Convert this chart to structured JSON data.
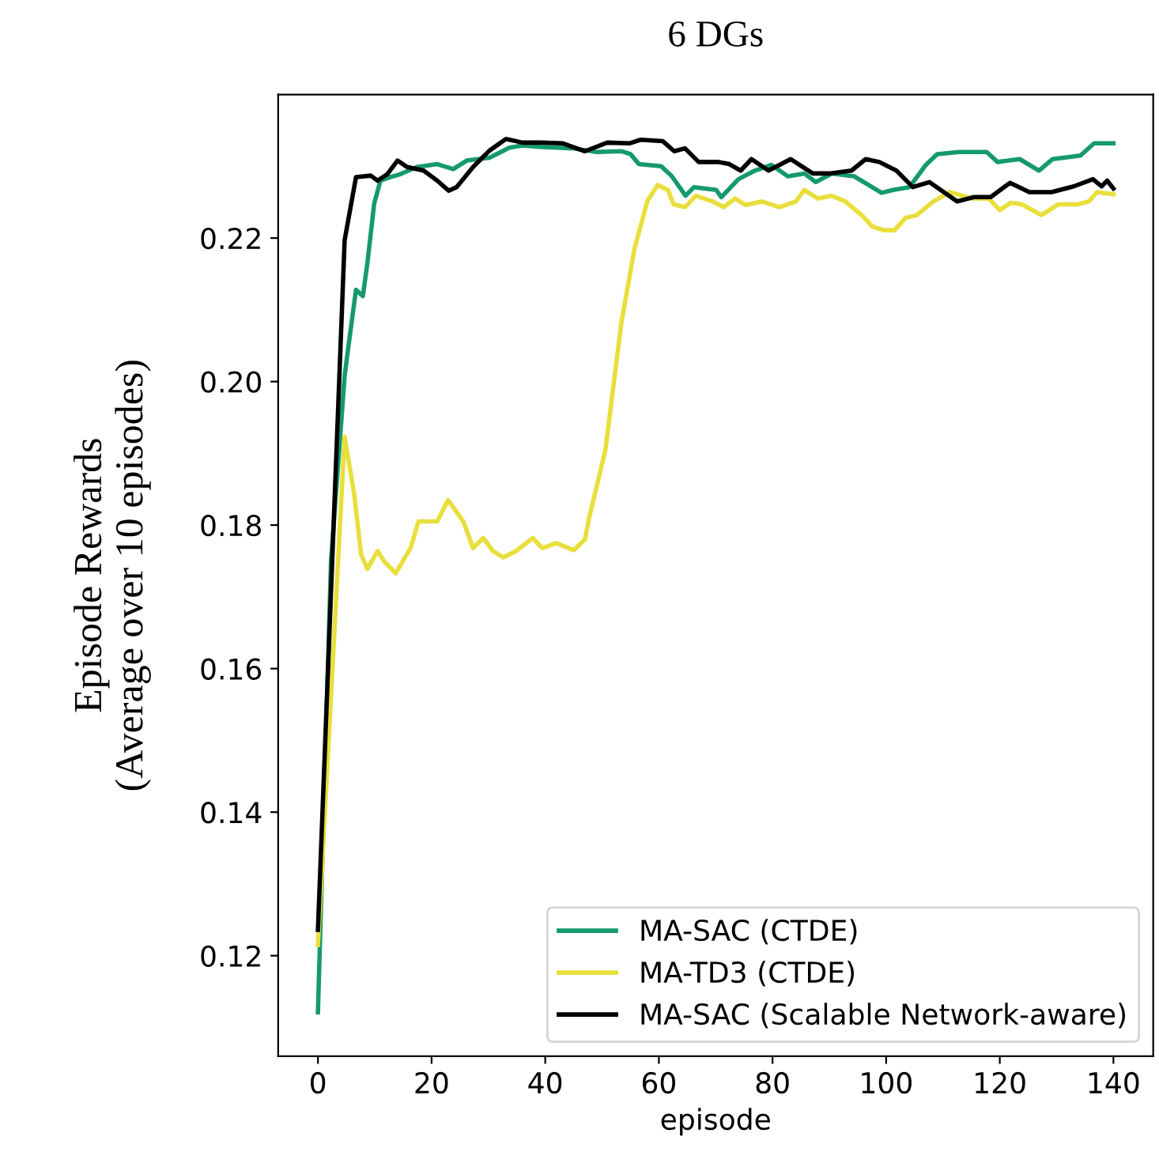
{
  "chart_data": {
    "type": "line",
    "title": "6 DGs",
    "xlabel": "episode",
    "ylabel": "Episode Rewards\n(Average over 10 episodes)",
    "xlim": [
      -7,
      147
    ],
    "ylim": [
      0.106,
      0.24
    ],
    "xticks": [
      0,
      20,
      40,
      60,
      80,
      100,
      120,
      140
    ],
    "yticks": [
      {
        "value": 0.12,
        "label": "0.12"
      },
      {
        "value": 0.14,
        "label": "0.14"
      },
      {
        "value": 0.16,
        "label": "0.16"
      },
      {
        "value": 0.18,
        "label": "0.18"
      },
      {
        "value": 0.2,
        "label": "0.20"
      },
      {
        "value": 0.22,
        "label": "0.22"
      }
    ],
    "grid": false,
    "legend": "bottom right",
    "line_style": "solid",
    "marker": "none",
    "series": [
      {
        "name": "MA-SAC (CTDE)",
        "color": "#15996f",
        "x": [
          0,
          2.3,
          4.7,
          5.3,
          6.7,
          7.9,
          8.7,
          9.9,
          11,
          12.8,
          14.5,
          17.4,
          21,
          23.8,
          26.2,
          30.2,
          33.7,
          36,
          39,
          45,
          49,
          53.5,
          55,
          56.5,
          60.4,
          62.3,
          64.7,
          66.2,
          70.1,
          71,
          74,
          76.9,
          79.8,
          82.7,
          85.6,
          87.6,
          90.5,
          94.4,
          99.2,
          101.2,
          104.1,
          107,
          109,
          112.8,
          117.7,
          119.6,
          123.5,
          126.9,
          129.3,
          134.2,
          136.6,
          140
        ],
        "values": [
          0.1121,
          0.175,
          0.2008,
          0.2045,
          0.2128,
          0.2119,
          0.2165,
          0.2248,
          0.228,
          0.2285,
          0.2289,
          0.2299,
          0.2303,
          0.2296,
          0.2308,
          0.2312,
          0.2326,
          0.2329,
          0.2327,
          0.2325,
          0.232,
          0.2321,
          0.2317,
          0.2303,
          0.23,
          0.2286,
          0.2259,
          0.2271,
          0.2267,
          0.2257,
          0.2282,
          0.2294,
          0.2302,
          0.2286,
          0.229,
          0.2278,
          0.229,
          0.2286,
          0.2263,
          0.2267,
          0.2271,
          0.2302,
          0.2317,
          0.232,
          0.232,
          0.2306,
          0.231,
          0.2294,
          0.231,
          0.2315,
          0.2332,
          0.2332
        ]
      },
      {
        "name": "MA-TD3 (CTDE)",
        "color": "#e8df3c",
        "x": [
          0,
          4.7,
          6.4,
          7.6,
          8.7,
          10.5,
          11.6,
          13.7,
          16.3,
          17.7,
          19.8,
          21,
          22.9,
          25.6,
          27.3,
          29.1,
          30.8,
          32.6,
          34.9,
          37.8,
          39.5,
          42,
          45,
          47,
          47.7,
          50.6,
          53.4,
          55.7,
          58,
          59.8,
          61.6,
          62.6,
          64.6,
          66.5,
          69.5,
          71.4,
          73.4,
          75.3,
          78.2,
          81.2,
          84.1,
          85.6,
          88,
          90.4,
          92.8,
          95.7,
          97.6,
          99.6,
          101.5,
          103.4,
          105.4,
          108.3,
          111.2,
          115.1,
          118.1,
          120,
          121.9,
          123.9,
          127.3,
          130.3,
          133.7,
          135.7,
          137.1,
          140
        ],
        "values": [
          0.1215,
          0.1923,
          0.1842,
          0.1759,
          0.1739,
          0.1764,
          0.175,
          0.1733,
          0.1768,
          0.1805,
          0.1805,
          0.1805,
          0.1835,
          0.1805,
          0.1768,
          0.1782,
          0.1764,
          0.1755,
          0.1764,
          0.1782,
          0.1768,
          0.1775,
          0.1765,
          0.178,
          0.1809,
          0.1905,
          0.2082,
          0.2185,
          0.2252,
          0.2274,
          0.2267,
          0.2247,
          0.2243,
          0.2259,
          0.2251,
          0.2243,
          0.2255,
          0.2246,
          0.2251,
          0.2243,
          0.2251,
          0.2267,
          0.2255,
          0.2259,
          0.2251,
          0.2232,
          0.2216,
          0.2211,
          0.2211,
          0.2228,
          0.2232,
          0.2251,
          0.2264,
          0.2255,
          0.2255,
          0.2239,
          0.2249,
          0.2247,
          0.2232,
          0.2247,
          0.2247,
          0.2251,
          0.2264,
          0.2261
        ]
      },
      {
        "name": "MA-SAC (Scalable Network-aware)",
        "color": "#000000",
        "x": [
          0,
          4.7,
          6.7,
          9.3,
          10.5,
          12.2,
          14,
          15.7,
          18.6,
          21,
          23,
          24.4,
          27.3,
          30.2,
          33.1,
          36,
          39.2,
          43.1,
          47,
          50.9,
          54.8,
          56.8,
          60.7,
          62.7,
          64.6,
          67,
          70.5,
          72.4,
          74.4,
          76.3,
          79.3,
          83.2,
          87.1,
          90,
          93.9,
          96.4,
          98.8,
          101.8,
          104.7,
          107.6,
          112.5,
          115.4,
          118.4,
          121.8,
          125.2,
          129.1,
          133,
          136.4,
          137.9,
          138.9,
          140
        ],
        "values": [
          0.1236,
          0.2197,
          0.2285,
          0.2287,
          0.228,
          0.2289,
          0.2308,
          0.2299,
          0.2294,
          0.228,
          0.2266,
          0.2271,
          0.2299,
          0.2322,
          0.2338,
          0.2333,
          0.2333,
          0.2332,
          0.2321,
          0.2333,
          0.2332,
          0.2337,
          0.2335,
          0.2321,
          0.2325,
          0.2306,
          0.2306,
          0.2303,
          0.2294,
          0.231,
          0.2294,
          0.231,
          0.229,
          0.229,
          0.2294,
          0.231,
          0.2306,
          0.2294,
          0.2271,
          0.2278,
          0.2251,
          0.2257,
          0.2257,
          0.2277,
          0.2264,
          0.2264,
          0.2272,
          0.2282,
          0.2272,
          0.228,
          0.2269
        ]
      }
    ]
  }
}
